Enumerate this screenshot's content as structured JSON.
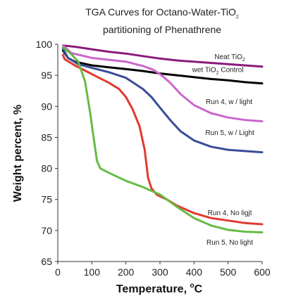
{
  "chart_data": {
    "type": "line",
    "title_line1": "TGA Curves for Octano-Water-TiO",
    "title_line1_sub": "2",
    "title_line2": "partitioning of Phenathrene",
    "xlabel": "Temperature, ",
    "xlabel_sup": "o",
    "xlabel_unit": "C",
    "ylabel": "Weight percent, %",
    "xlim": [
      0,
      600
    ],
    "ylim": [
      65,
      100
    ],
    "xticks": [
      0,
      100,
      200,
      300,
      400,
      500,
      600
    ],
    "yticks": [
      65,
      70,
      75,
      80,
      85,
      90,
      95,
      100
    ],
    "grid": false,
    "series": [
      {
        "name": "Neat TiO2",
        "color": "#8b1a7c",
        "points": [
          [
            15,
            99.8
          ],
          [
            50,
            99.6
          ],
          [
            100,
            99.2
          ],
          [
            150,
            98.8
          ],
          [
            200,
            98.5
          ],
          [
            250,
            98.1
          ],
          [
            300,
            97.7
          ],
          [
            350,
            97.4
          ],
          [
            400,
            97.2
          ],
          [
            450,
            97.0
          ],
          [
            500,
            96.8
          ],
          [
            550,
            96.6
          ],
          [
            600,
            96.4
          ]
        ]
      },
      {
        "name": "wet TiO2 Control",
        "color": "#000000",
        "points": [
          [
            15,
            99.0
          ],
          [
            30,
            97.8
          ],
          [
            50,
            97.2
          ],
          [
            100,
            96.6
          ],
          [
            150,
            96.3
          ],
          [
            200,
            96.0
          ],
          [
            250,
            95.7
          ],
          [
            300,
            95.3
          ],
          [
            350,
            95.0
          ],
          [
            400,
            94.7
          ],
          [
            450,
            94.4
          ],
          [
            500,
            94.2
          ],
          [
            550,
            93.9
          ],
          [
            600,
            93.7
          ]
        ]
      },
      {
        "name": "Run 4, w / light",
        "color": "#cc66cc",
        "points": [
          [
            15,
            99.8
          ],
          [
            40,
            98.6
          ],
          [
            100,
            97.8
          ],
          [
            150,
            97.5
          ],
          [
            200,
            97.2
          ],
          [
            250,
            96.5
          ],
          [
            280,
            95.9
          ],
          [
            300,
            95.2
          ],
          [
            330,
            93.8
          ],
          [
            360,
            92.0
          ],
          [
            400,
            90.2
          ],
          [
            450,
            88.9
          ],
          [
            500,
            88.2
          ],
          [
            550,
            87.8
          ],
          [
            600,
            87.6
          ]
        ]
      },
      {
        "name": "Run 5, w / Light",
        "color": "#3a4d99",
        "points": [
          [
            15,
            99.3
          ],
          [
            30,
            97.8
          ],
          [
            60,
            96.8
          ],
          [
            100,
            96.2
          ],
          [
            150,
            95.5
          ],
          [
            200,
            94.6
          ],
          [
            250,
            92.8
          ],
          [
            275,
            91.5
          ],
          [
            300,
            89.8
          ],
          [
            330,
            87.8
          ],
          [
            360,
            86.0
          ],
          [
            400,
            84.5
          ],
          [
            450,
            83.5
          ],
          [
            500,
            83.0
          ],
          [
            550,
            82.8
          ],
          [
            600,
            82.6
          ]
        ]
      },
      {
        "name": "Run 4, No ligjt",
        "color": "#e03a2e",
        "points": [
          [
            15,
            98.3
          ],
          [
            20,
            97.6
          ],
          [
            50,
            96.6
          ],
          [
            100,
            95.2
          ],
          [
            150,
            93.8
          ],
          [
            180,
            92.8
          ],
          [
            200,
            91.5
          ],
          [
            220,
            89.5
          ],
          [
            240,
            86.8
          ],
          [
            255,
            83.0
          ],
          [
            265,
            78.5
          ],
          [
            275,
            76.8
          ],
          [
            290,
            75.8
          ],
          [
            300,
            75.5
          ],
          [
            320,
            75.0
          ],
          [
            350,
            74.0
          ],
          [
            400,
            72.8
          ],
          [
            450,
            72.0
          ],
          [
            500,
            71.6
          ],
          [
            550,
            71.2
          ],
          [
            600,
            71.0
          ]
        ]
      },
      {
        "name": "Run 5, No light",
        "color": "#66bb44",
        "points": [
          [
            15,
            99.5
          ],
          [
            40,
            98.4
          ],
          [
            60,
            97.2
          ],
          [
            80,
            94.0
          ],
          [
            95,
            89.0
          ],
          [
            105,
            85.0
          ],
          [
            115,
            81.2
          ],
          [
            125,
            80.0
          ],
          [
            150,
            79.3
          ],
          [
            200,
            78.0
          ],
          [
            250,
            77.0
          ],
          [
            300,
            75.8
          ],
          [
            350,
            73.8
          ],
          [
            400,
            72.0
          ],
          [
            450,
            70.8
          ],
          [
            500,
            70.1
          ],
          [
            550,
            69.8
          ],
          [
            600,
            69.7
          ]
        ]
      }
    ],
    "annotations": [
      {
        "text": "Neat TiO",
        "sub": "2",
        "x": 505,
        "y": 97.6
      },
      {
        "text": "wet TiO",
        "sub": "2",
        "text_after": " Control",
        "x": 470,
        "y": 95.5
      },
      {
        "text": "Run 4, w / light",
        "x": 503,
        "y": 90.4
      },
      {
        "text": "Run 5, w / Light",
        "x": 505,
        "y": 85.4
      },
      {
        "text": "Run 4, No ligjt",
        "x": 505,
        "y": 72.5
      },
      {
        "text": "Run 5, No light",
        "x": 505,
        "y": 67.7
      }
    ]
  }
}
